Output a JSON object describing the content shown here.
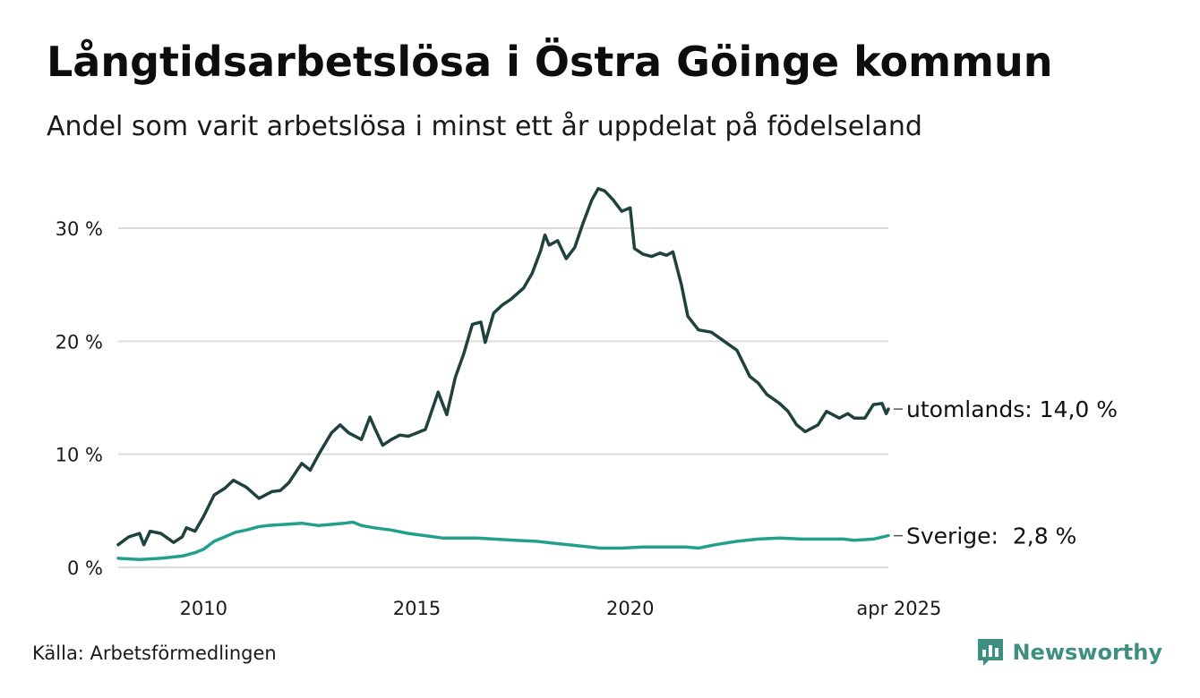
{
  "title": "Långtidsarbetslösa i Östra Göinge kommun",
  "subtitle": "Andel som varit arbetslösa i minst ett år uppdelat på födelseland",
  "source": "Källa: Arbetsförmedlingen",
  "brand": {
    "name": "Newsworthy",
    "icon": "newsworthy-logo-icon",
    "color": "#3d8f7f"
  },
  "chart_data": {
    "type": "line",
    "title": "Långtidsarbetslösa i Östra Göinge kommun",
    "subtitle": "Andel som varit arbetslösa i minst ett år uppdelat på födelseland",
    "x_range": [
      2008.0,
      2025.25
    ],
    "ylim": [
      0,
      35
    ],
    "y_ticks": [
      0,
      10,
      20,
      30
    ],
    "y_tick_labels": [
      "0 %",
      "10 %",
      "20 %",
      "30 %"
    ],
    "x_ticks": [
      2010,
      2015,
      2020,
      2025.25
    ],
    "x_tick_labels": [
      "2010",
      "2015",
      "2020",
      "apr 2025"
    ],
    "grid": "horizontal",
    "legend": "direct labels at line ends",
    "series": [
      {
        "name": "utomlands",
        "end_label": "utomlands: 14,0 %",
        "color": "#1f423e",
        "points": [
          [
            2008.0,
            2.0
          ],
          [
            2008.25,
            2.7
          ],
          [
            2008.5,
            3.0
          ],
          [
            2008.6,
            2.0
          ],
          [
            2008.75,
            3.2
          ],
          [
            2009.0,
            3.0
          ],
          [
            2009.3,
            2.2
          ],
          [
            2009.5,
            2.7
          ],
          [
            2009.6,
            3.5
          ],
          [
            2009.8,
            3.2
          ],
          [
            2010.0,
            4.5
          ],
          [
            2010.25,
            6.4
          ],
          [
            2010.5,
            7.0
          ],
          [
            2010.7,
            7.7
          ],
          [
            2011.0,
            7.1
          ],
          [
            2011.3,
            6.1
          ],
          [
            2011.6,
            6.7
          ],
          [
            2011.8,
            6.8
          ],
          [
            2012.0,
            7.5
          ],
          [
            2012.3,
            9.2
          ],
          [
            2012.5,
            8.6
          ],
          [
            2012.7,
            10.0
          ],
          [
            2013.0,
            11.9
          ],
          [
            2013.2,
            12.6
          ],
          [
            2013.4,
            11.9
          ],
          [
            2013.7,
            11.3
          ],
          [
            2013.9,
            13.3
          ],
          [
            2014.0,
            12.4
          ],
          [
            2014.2,
            10.8
          ],
          [
            2014.4,
            11.3
          ],
          [
            2014.6,
            11.7
          ],
          [
            2014.8,
            11.6
          ],
          [
            2015.0,
            11.9
          ],
          [
            2015.2,
            12.2
          ],
          [
            2015.5,
            15.5
          ],
          [
            2015.7,
            13.5
          ],
          [
            2015.9,
            16.8
          ],
          [
            2016.1,
            18.9
          ],
          [
            2016.3,
            21.5
          ],
          [
            2016.5,
            21.7
          ],
          [
            2016.6,
            19.9
          ],
          [
            2016.8,
            22.5
          ],
          [
            2017.0,
            23.2
          ],
          [
            2017.2,
            23.7
          ],
          [
            2017.5,
            24.7
          ],
          [
            2017.7,
            26.0
          ],
          [
            2017.9,
            28.0
          ],
          [
            2018.0,
            29.4
          ],
          [
            2018.1,
            28.5
          ],
          [
            2018.3,
            28.9
          ],
          [
            2018.5,
            27.3
          ],
          [
            2018.7,
            28.3
          ],
          [
            2018.9,
            30.5
          ],
          [
            2019.1,
            32.5
          ],
          [
            2019.25,
            33.5
          ],
          [
            2019.4,
            33.3
          ],
          [
            2019.6,
            32.5
          ],
          [
            2019.8,
            31.5
          ],
          [
            2020.0,
            31.8
          ],
          [
            2020.1,
            28.2
          ],
          [
            2020.3,
            27.7
          ],
          [
            2020.5,
            27.5
          ],
          [
            2020.7,
            27.8
          ],
          [
            2020.85,
            27.6
          ],
          [
            2021.0,
            27.9
          ],
          [
            2021.2,
            25.0
          ],
          [
            2021.35,
            22.2
          ],
          [
            2021.6,
            21.0
          ],
          [
            2021.9,
            20.8
          ],
          [
            2022.2,
            20.0
          ],
          [
            2022.5,
            19.2
          ],
          [
            2022.8,
            16.9
          ],
          [
            2023.0,
            16.3
          ],
          [
            2023.2,
            15.3
          ],
          [
            2023.5,
            14.5
          ],
          [
            2023.7,
            13.8
          ],
          [
            2023.9,
            12.6
          ],
          [
            2024.1,
            12.0
          ],
          [
            2024.4,
            12.6
          ],
          [
            2024.6,
            13.8
          ],
          [
            2024.9,
            13.2
          ],
          [
            2025.1,
            13.6
          ],
          [
            2025.25,
            13.2
          ],
          [
            2025.5,
            13.2
          ],
          [
            2025.7,
            14.4
          ],
          [
            2025.9,
            14.5
          ],
          [
            2026.0,
            13.6
          ],
          [
            2026.05,
            14.0
          ]
        ]
      },
      {
        "name": "Sverige",
        "end_label": "Sverige:  2,8 %",
        "color": "#23a08d",
        "points": [
          [
            2008.0,
            0.8
          ],
          [
            2008.5,
            0.7
          ],
          [
            2009.0,
            0.8
          ],
          [
            2009.5,
            1.0
          ],
          [
            2009.8,
            1.3
          ],
          [
            2010.0,
            1.6
          ],
          [
            2010.25,
            2.3
          ],
          [
            2010.5,
            2.7
          ],
          [
            2010.75,
            3.1
          ],
          [
            2011.0,
            3.3
          ],
          [
            2011.3,
            3.6
          ],
          [
            2011.5,
            3.7
          ],
          [
            2011.9,
            3.8
          ],
          [
            2012.3,
            3.9
          ],
          [
            2012.7,
            3.7
          ],
          [
            2013.0,
            3.8
          ],
          [
            2013.3,
            3.9
          ],
          [
            2013.5,
            4.0
          ],
          [
            2013.7,
            3.7
          ],
          [
            2014.0,
            3.5
          ],
          [
            2014.4,
            3.3
          ],
          [
            2014.8,
            3.0
          ],
          [
            2015.2,
            2.8
          ],
          [
            2015.6,
            2.6
          ],
          [
            2016.0,
            2.6
          ],
          [
            2016.4,
            2.6
          ],
          [
            2016.8,
            2.5
          ],
          [
            2017.3,
            2.4
          ],
          [
            2017.8,
            2.3
          ],
          [
            2018.3,
            2.1
          ],
          [
            2018.8,
            1.9
          ],
          [
            2019.3,
            1.7
          ],
          [
            2019.8,
            1.7
          ],
          [
            2020.3,
            1.8
          ],
          [
            2020.8,
            1.8
          ],
          [
            2021.3,
            1.8
          ],
          [
            2021.6,
            1.7
          ],
          [
            2022.0,
            2.0
          ],
          [
            2022.5,
            2.3
          ],
          [
            2023.0,
            2.5
          ],
          [
            2023.5,
            2.6
          ],
          [
            2024.0,
            2.5
          ],
          [
            2024.5,
            2.5
          ],
          [
            2025.0,
            2.5
          ],
          [
            2025.25,
            2.4
          ],
          [
            2025.7,
            2.5
          ],
          [
            2026.05,
            2.8
          ]
        ]
      }
    ]
  }
}
